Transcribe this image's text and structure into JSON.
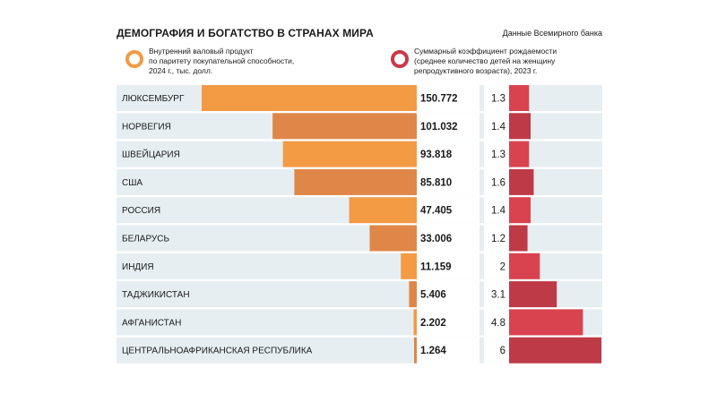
{
  "header": {
    "title": "ДЕМОГРАФИЯ И БОГАТСТВО В СТРАНАХ МИРА",
    "source": "Данные Всемирного банка"
  },
  "legend": {
    "gdp": {
      "lines": [
        "Внутренний валовый продукт",
        "по паритету покупательной способности,",
        "2024 г., тыс. долл."
      ],
      "color": "#f39a45"
    },
    "tfr": {
      "lines": [
        "Суммарный коэффициент рождаемости",
        "(среднее количество детей на  женщину",
        "репродуктивного возраста),  2023 г."
      ],
      "color": "#c8394a"
    }
  },
  "colors": {
    "band": "#e6eef2",
    "gdp_light": "#f39a45",
    "gdp_dark": "#df8748",
    "tfr_light": "#d9434f",
    "tfr_dark": "#bf3a47"
  },
  "chart_data": {
    "type": "bar",
    "categories": [
      "ЛЮКСЕМБУРГ",
      "НОРВЕГИЯ",
      "ШВЕЙЦАРИЯ",
      "США",
      "РОССИЯ",
      "БЕЛАРУСЬ",
      "ИНДИЯ",
      "ТАДЖИКИСТАН",
      "АФГАНИСТАН",
      "ЦЕНТРАЛЬНОАФРИКАНСКАЯ РЕСПУБЛИКА"
    ],
    "series": [
      {
        "name": "Внутренний валовый продукт по паритету покупательной способности, 2024 г., тыс. долл.",
        "values": [
          150.772,
          101.032,
          93.818,
          85.81,
          47.405,
          33.006,
          11.159,
          5.406,
          2.202,
          1.264
        ],
        "labels": [
          "150.772",
          "101.032",
          "93.818",
          "85.810",
          "47.405",
          "33.006",
          "11.159",
          "5.406",
          "2.202",
          "1.264"
        ]
      },
      {
        "name": "Суммарный коэффициент рождаемости (среднее количество детей на  женщину репродуктивного возраста),  2023 г.",
        "values": [
          1.3,
          1.4,
          1.3,
          1.6,
          1.4,
          1.2,
          2,
          3.1,
          4.8,
          6
        ],
        "labels": [
          "1.3",
          "1.4",
          "1.3",
          "1.6",
          "1.4",
          "1.2",
          "2",
          "3.1",
          "4.8",
          "6"
        ]
      }
    ],
    "legend_position": "top",
    "grid": false
  }
}
